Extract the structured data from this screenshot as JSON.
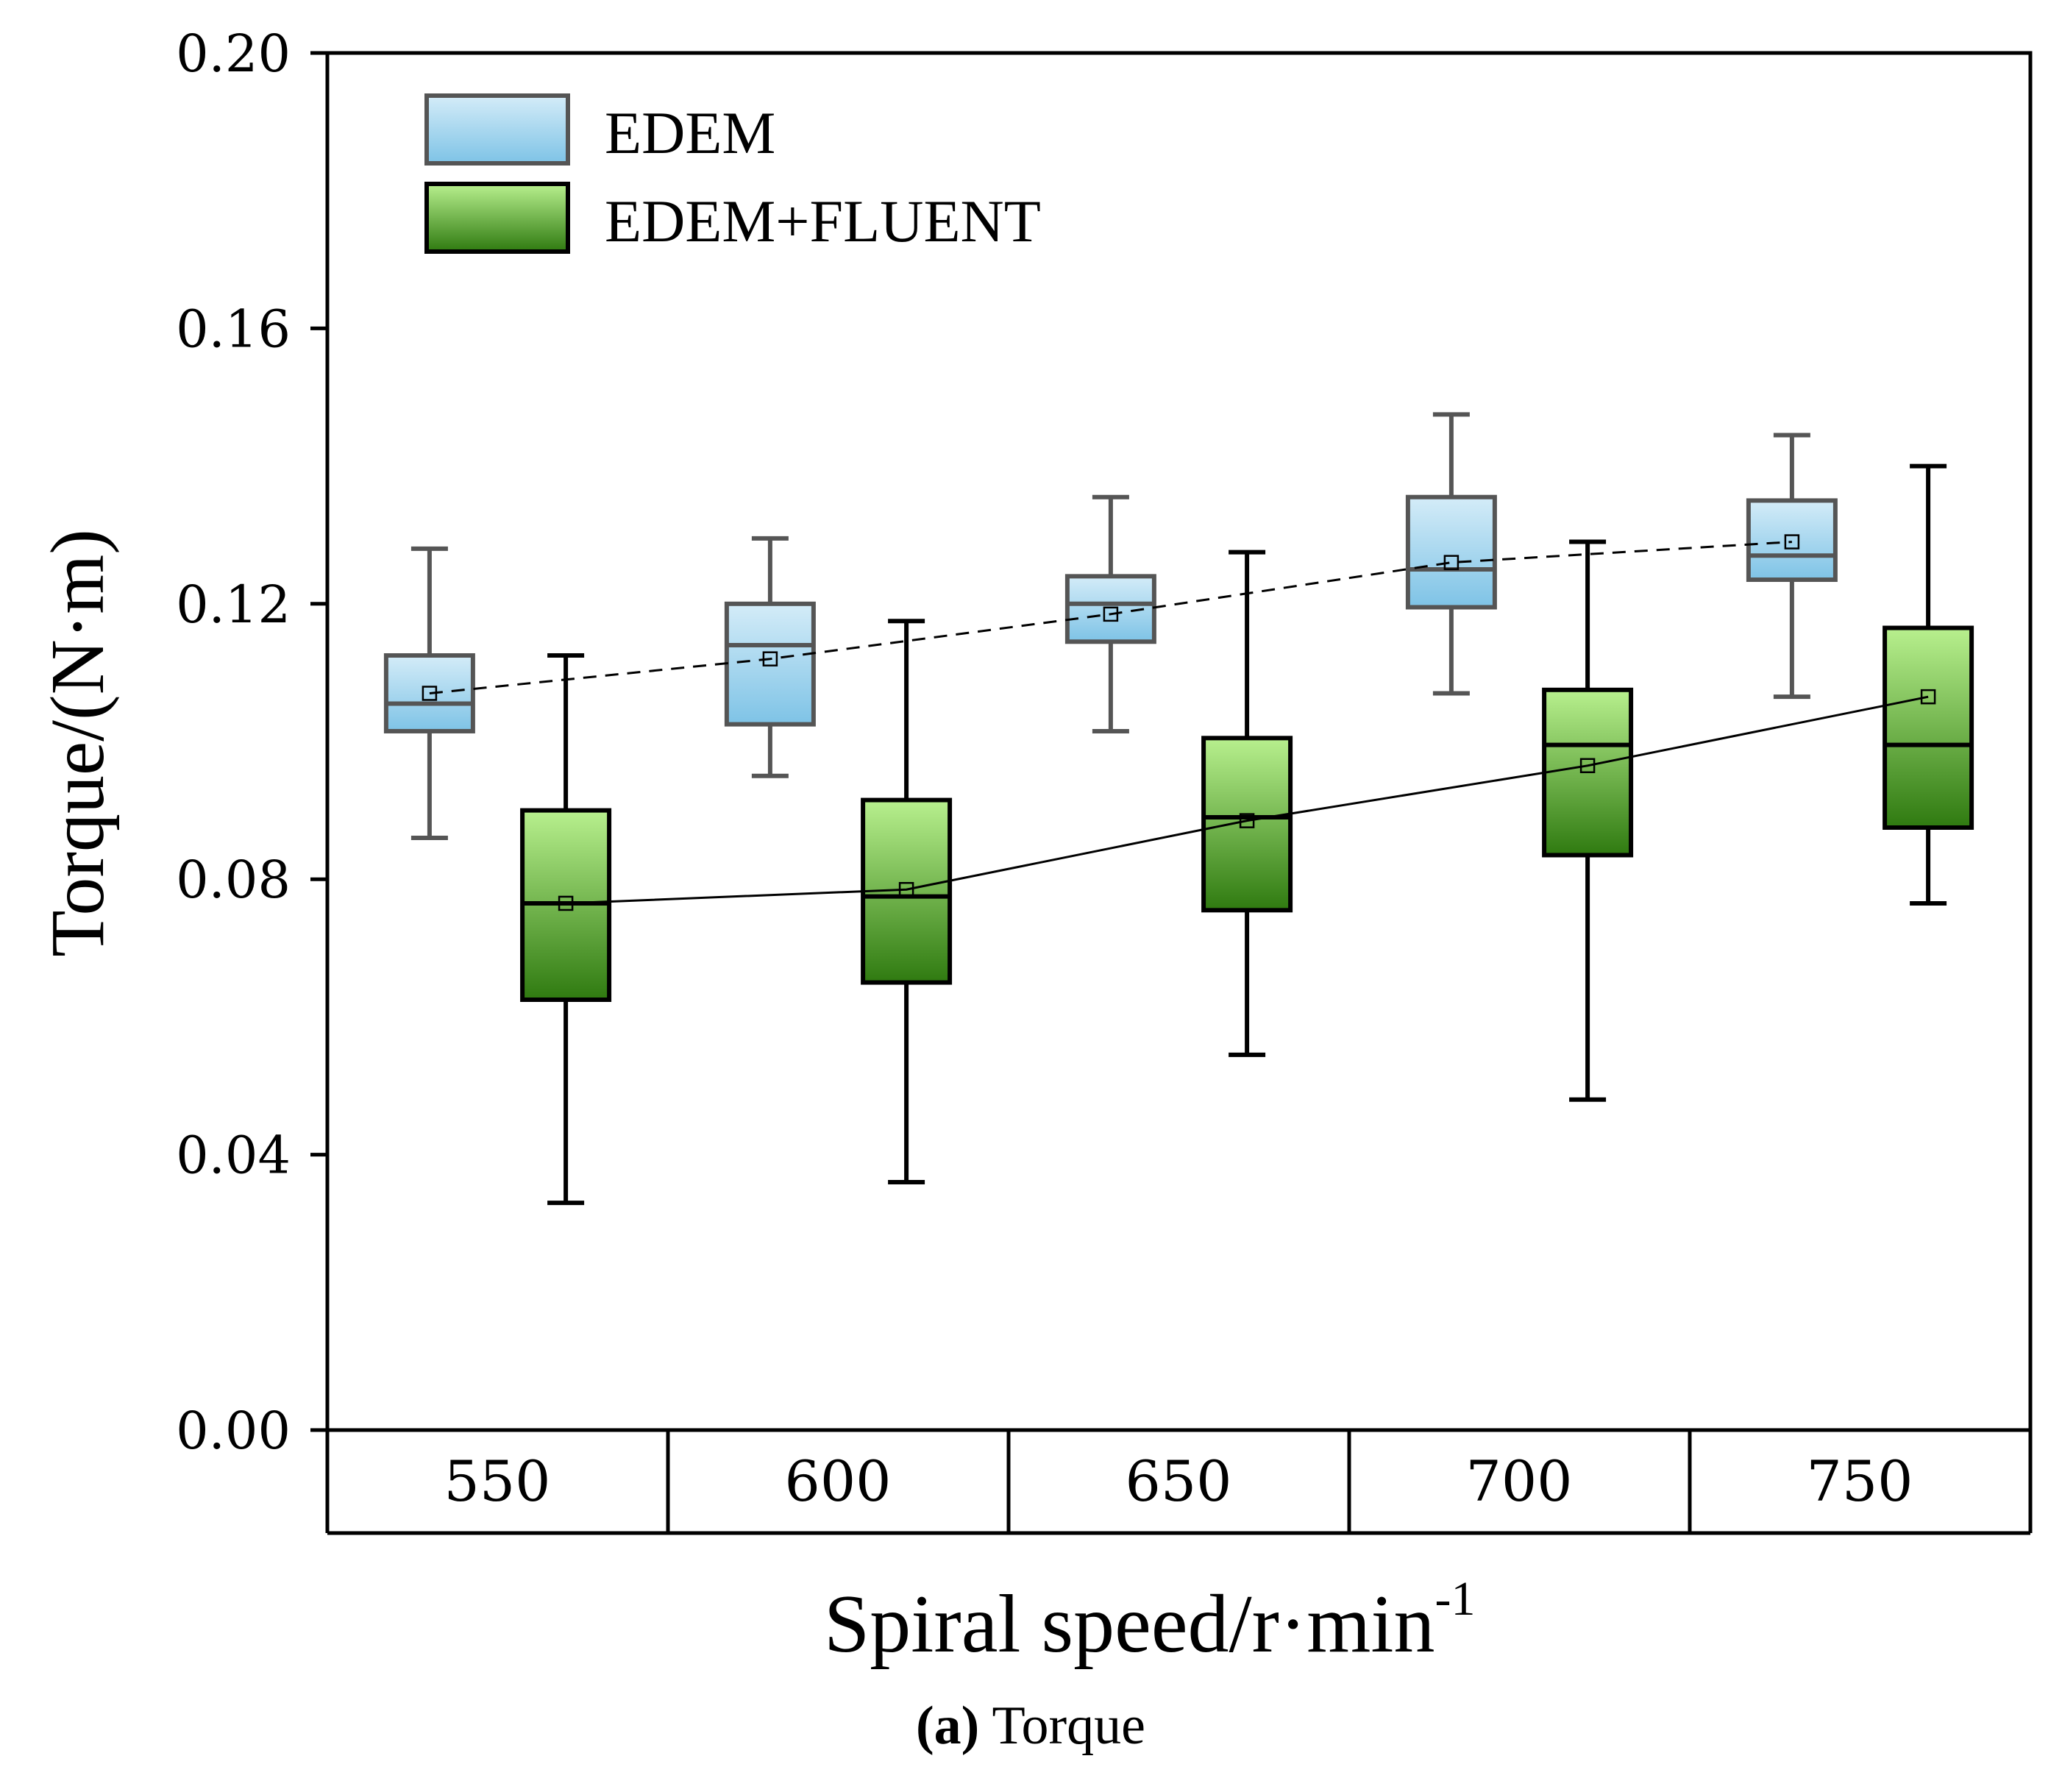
{
  "chart_data": {
    "type": "box",
    "title": "",
    "xlabel": "Spiral speed/r·min",
    "xlabel_superscript": "-1",
    "ylabel": "Torque/(N·m)",
    "ylim": [
      0,
      0.2
    ],
    "yticks": [
      "0.00",
      "0.04",
      "0.08",
      "0.12",
      "0.16",
      "0.20"
    ],
    "ytick_values": [
      0,
      0.04,
      0.08,
      0.12,
      0.16,
      0.2
    ],
    "categories": [
      "550",
      "600",
      "650",
      "700",
      "750"
    ],
    "legend_position": "top-left",
    "series": [
      {
        "name": "EDEM",
        "color_top": "#d4ecf8",
        "color_bottom": "#7ec3e6",
        "edge_color": "#555555",
        "mean_line": "dashed",
        "boxes": [
          {
            "min": 0.086,
            "q1": 0.1015,
            "median": 0.1055,
            "q3": 0.1125,
            "max": 0.128,
            "mean": 0.107
          },
          {
            "min": 0.095,
            "q1": 0.1025,
            "median": 0.114,
            "q3": 0.12,
            "max": 0.1295,
            "mean": 0.112
          },
          {
            "min": 0.1015,
            "q1": 0.1145,
            "median": 0.12,
            "q3": 0.124,
            "max": 0.1355,
            "mean": 0.1185
          },
          {
            "min": 0.107,
            "q1": 0.1195,
            "median": 0.125,
            "q3": 0.1355,
            "max": 0.1475,
            "mean": 0.126
          },
          {
            "min": 0.1065,
            "q1": 0.1235,
            "median": 0.127,
            "q3": 0.135,
            "max": 0.1445,
            "mean": 0.129
          }
        ]
      },
      {
        "name": "EDEM+FLUENT",
        "color_top": "#b8f08e",
        "color_bottom": "#2f7a10",
        "edge_color": "#000000",
        "mean_line": "solid",
        "boxes": [
          {
            "min": 0.033,
            "q1": 0.0625,
            "median": 0.0765,
            "q3": 0.09,
            "max": 0.1125,
            "mean": 0.0765
          },
          {
            "min": 0.036,
            "q1": 0.065,
            "median": 0.0775,
            "q3": 0.0915,
            "max": 0.1175,
            "mean": 0.0785
          },
          {
            "min": 0.0545,
            "q1": 0.0755,
            "median": 0.089,
            "q3": 0.1005,
            "max": 0.1275,
            "mean": 0.0885
          },
          {
            "min": 0.048,
            "q1": 0.0835,
            "median": 0.0995,
            "q3": 0.1075,
            "max": 0.129,
            "mean": 0.0965
          },
          {
            "min": 0.0765,
            "q1": 0.0875,
            "median": 0.0995,
            "q3": 0.1165,
            "max": 0.14,
            "mean": 0.1065
          }
        ]
      }
    ]
  },
  "caption": {
    "label": "(a)",
    "text": " Torque"
  }
}
